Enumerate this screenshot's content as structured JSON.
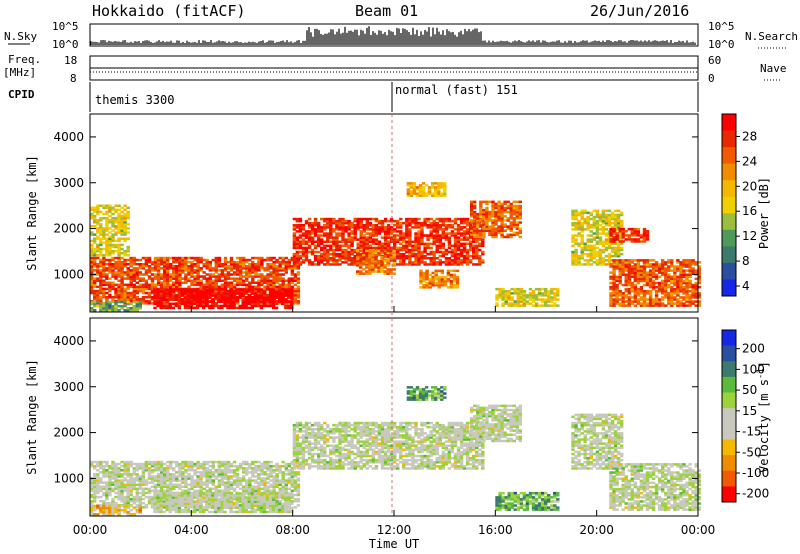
{
  "header": {
    "station": "Hokkaido (fitACF)",
    "beam": "Beam 01",
    "date": "26/Jun/2016"
  },
  "top_panels": {
    "nsky_label": "N.Sky",
    "nsky_ticks": [
      "10^5",
      "10^0"
    ],
    "nsearch_label": "N.Search",
    "nsearch_ticks": [
      "10^5",
      "10^0"
    ],
    "freq_label": "Freq.",
    "freq_unit": "[MHz]",
    "freq_ticks": [
      "18",
      "8"
    ],
    "nave_label": "Nave",
    "nave_ticks": [
      "60",
      "0"
    ],
    "cpid_label": "CPID",
    "cpid_segments": [
      "themis 3300",
      "normal (fast) 151"
    ]
  },
  "chart_data": [
    {
      "type": "heatmap",
      "name": "power-panel",
      "ylabel": "Slant Range [km]",
      "ylim": [
        180,
        4500
      ],
      "yticks": [
        "1000",
        "2000",
        "3000",
        "4000"
      ],
      "xlim": [
        0,
        24
      ],
      "colorbar_label": "Power [dB]",
      "colorbar_ticks": [
        "28",
        "24",
        "20",
        "16",
        "12",
        "8",
        "4"
      ],
      "colors": [
        "#1428e6",
        "#2a4fa0",
        "#3d7a6e",
        "#4f9a5a",
        "#9dbd3c",
        "#f0d000",
        "#f5b800",
        "#f08c00",
        "#f05a00",
        "#e82800",
        "#ff0000"
      ],
      "regions": [
        {
          "t0": 0.0,
          "t1": 8.2,
          "r0": 350,
          "r1": 1350,
          "level": 8.5
        },
        {
          "t0": 2.5,
          "t1": 8.0,
          "r0": 250,
          "r1": 700,
          "level": 10.5
        },
        {
          "t0": 0.0,
          "t1": 2.0,
          "r0": 200,
          "r1": 400,
          "level": 3.0
        },
        {
          "t0": 0.0,
          "t1": 1.5,
          "r0": 1400,
          "r1": 2500,
          "level": 5.0
        },
        {
          "t0": 8.0,
          "t1": 15.5,
          "r0": 1200,
          "r1": 2200,
          "level": 9.0
        },
        {
          "t0": 15.0,
          "t1": 17.0,
          "r0": 1800,
          "r1": 2600,
          "level": 8.0
        },
        {
          "t0": 12.5,
          "t1": 14.0,
          "r0": 2700,
          "r1": 3000,
          "level": 6.0
        },
        {
          "t0": 13.0,
          "t1": 14.5,
          "r0": 700,
          "r1": 1100,
          "level": 7.0
        },
        {
          "t0": 10.5,
          "t1": 12.0,
          "r0": 1000,
          "r1": 1500,
          "level": 7.5
        },
        {
          "t0": 19.0,
          "t1": 21.0,
          "r0": 1200,
          "r1": 2400,
          "level": 5.0
        },
        {
          "t0": 20.5,
          "t1": 22.0,
          "r0": 1700,
          "r1": 2000,
          "level": 9.0
        },
        {
          "t0": 20.5,
          "t1": 24.0,
          "r0": 300,
          "r1": 1300,
          "level": 8.0
        },
        {
          "t0": 16.0,
          "t1": 18.5,
          "r0": 300,
          "r1": 700,
          "level": 5.0
        }
      ]
    },
    {
      "type": "heatmap",
      "name": "velocity-panel",
      "ylabel": "Slant Range [km]",
      "ylim": [
        180,
        4500
      ],
      "yticks": [
        "1000",
        "2000",
        "3000",
        "4000"
      ],
      "xlim": [
        0,
        24
      ],
      "xticks": [
        "00:00",
        "04:00",
        "08:00",
        "12:00",
        "16:00",
        "20:00",
        "00:00"
      ],
      "xlabel": "Time UT",
      "colorbar_label": "Velocity [m s^-1]",
      "colorbar_ticks": [
        "200",
        "100",
        "50",
        "15",
        "-15",
        "-50",
        "-100",
        "-200"
      ],
      "colors": [
        "#ff0000",
        "#f05a00",
        "#f08c00",
        "#f5b800",
        "#c8c8be",
        "#c8c8be",
        "#9cd23c",
        "#5aba3c",
        "#3d7a6e",
        "#2a4fa0",
        "#1428e6"
      ],
      "regions": [
        {
          "t0": 0.0,
          "t1": 8.2,
          "r0": 350,
          "r1": 1350,
          "level": 5.0
        },
        {
          "t0": 2.5,
          "t1": 8.0,
          "r0": 250,
          "r1": 700,
          "level": 5.0
        },
        {
          "t0": 0.0,
          "t1": 2.0,
          "r0": 200,
          "r1": 400,
          "level": 3.0
        },
        {
          "t0": 8.0,
          "t1": 15.5,
          "r0": 1200,
          "r1": 2200,
          "level": 5.0
        },
        {
          "t0": 15.0,
          "t1": 17.0,
          "r0": 1800,
          "r1": 2600,
          "level": 5.0
        },
        {
          "t0": 12.5,
          "t1": 14.0,
          "r0": 2700,
          "r1": 3000,
          "level": 7.0
        },
        {
          "t0": 19.0,
          "t1": 21.0,
          "r0": 1200,
          "r1": 2400,
          "level": 5.0
        },
        {
          "t0": 20.5,
          "t1": 24.0,
          "r0": 300,
          "r1": 1300,
          "level": 5.0
        },
        {
          "t0": 16.0,
          "t1": 18.5,
          "r0": 300,
          "r1": 700,
          "level": 7.0
        }
      ]
    }
  ]
}
